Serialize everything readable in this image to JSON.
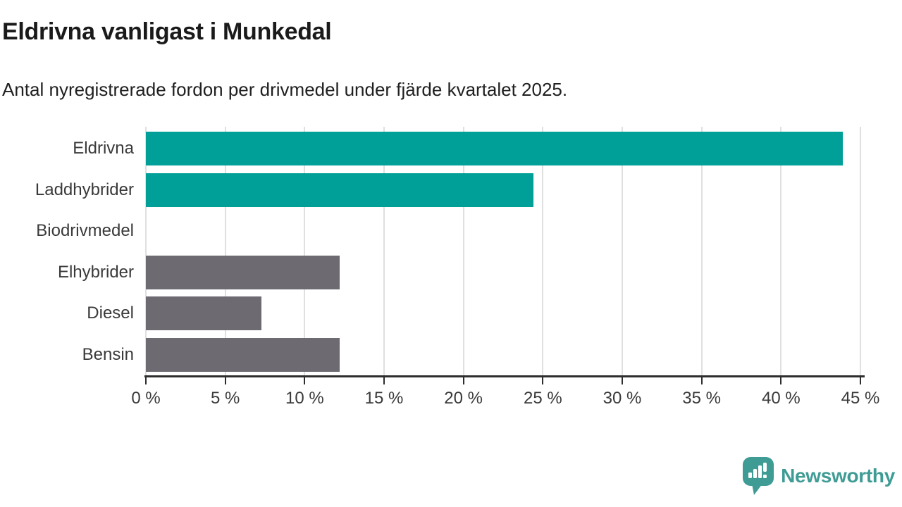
{
  "header": {
    "title": "Eldrivna vanligast i Munkedal",
    "subtitle": "Antal nyregistrerade fordon per drivmedel under fjärde kvartalet 2025."
  },
  "chart_data": {
    "type": "bar",
    "orientation": "horizontal",
    "title": "Eldrivna vanligast i Munkedal",
    "subtitle": "Antal nyregistrerade fordon per drivmedel under fjärde kvartalet 2025.",
    "categories": [
      "Eldrivna",
      "Laddhybrider",
      "Biodrivmedel",
      "Elhybrider",
      "Diesel",
      "Bensin"
    ],
    "values": [
      43.9,
      24.4,
      0,
      12.2,
      7.3,
      12.2
    ],
    "unit": "%",
    "xlim": [
      0,
      45
    ],
    "x_tick_labels": [
      "0 %",
      "5 %",
      "10 %",
      "15 %",
      "20 %",
      "25 %",
      "30 %",
      "35 %",
      "40 %",
      "45 %"
    ],
    "grid": true,
    "legend": false,
    "bar_colors": [
      "#00a099",
      "#00a099",
      "#6d6a72",
      "#6d6a72",
      "#6d6a72",
      "#6d6a72"
    ]
  },
  "colors": {
    "accent_teal": "#00a099",
    "bar_gray": "#6d6a72",
    "logo_teal": "#3f9c95",
    "gridline": "#e0e0e0",
    "axis": "#2d2d2d"
  },
  "footer": {
    "brand": "Newsworthy",
    "logo_icon": "bar-chart-speech-bubble-icon"
  }
}
